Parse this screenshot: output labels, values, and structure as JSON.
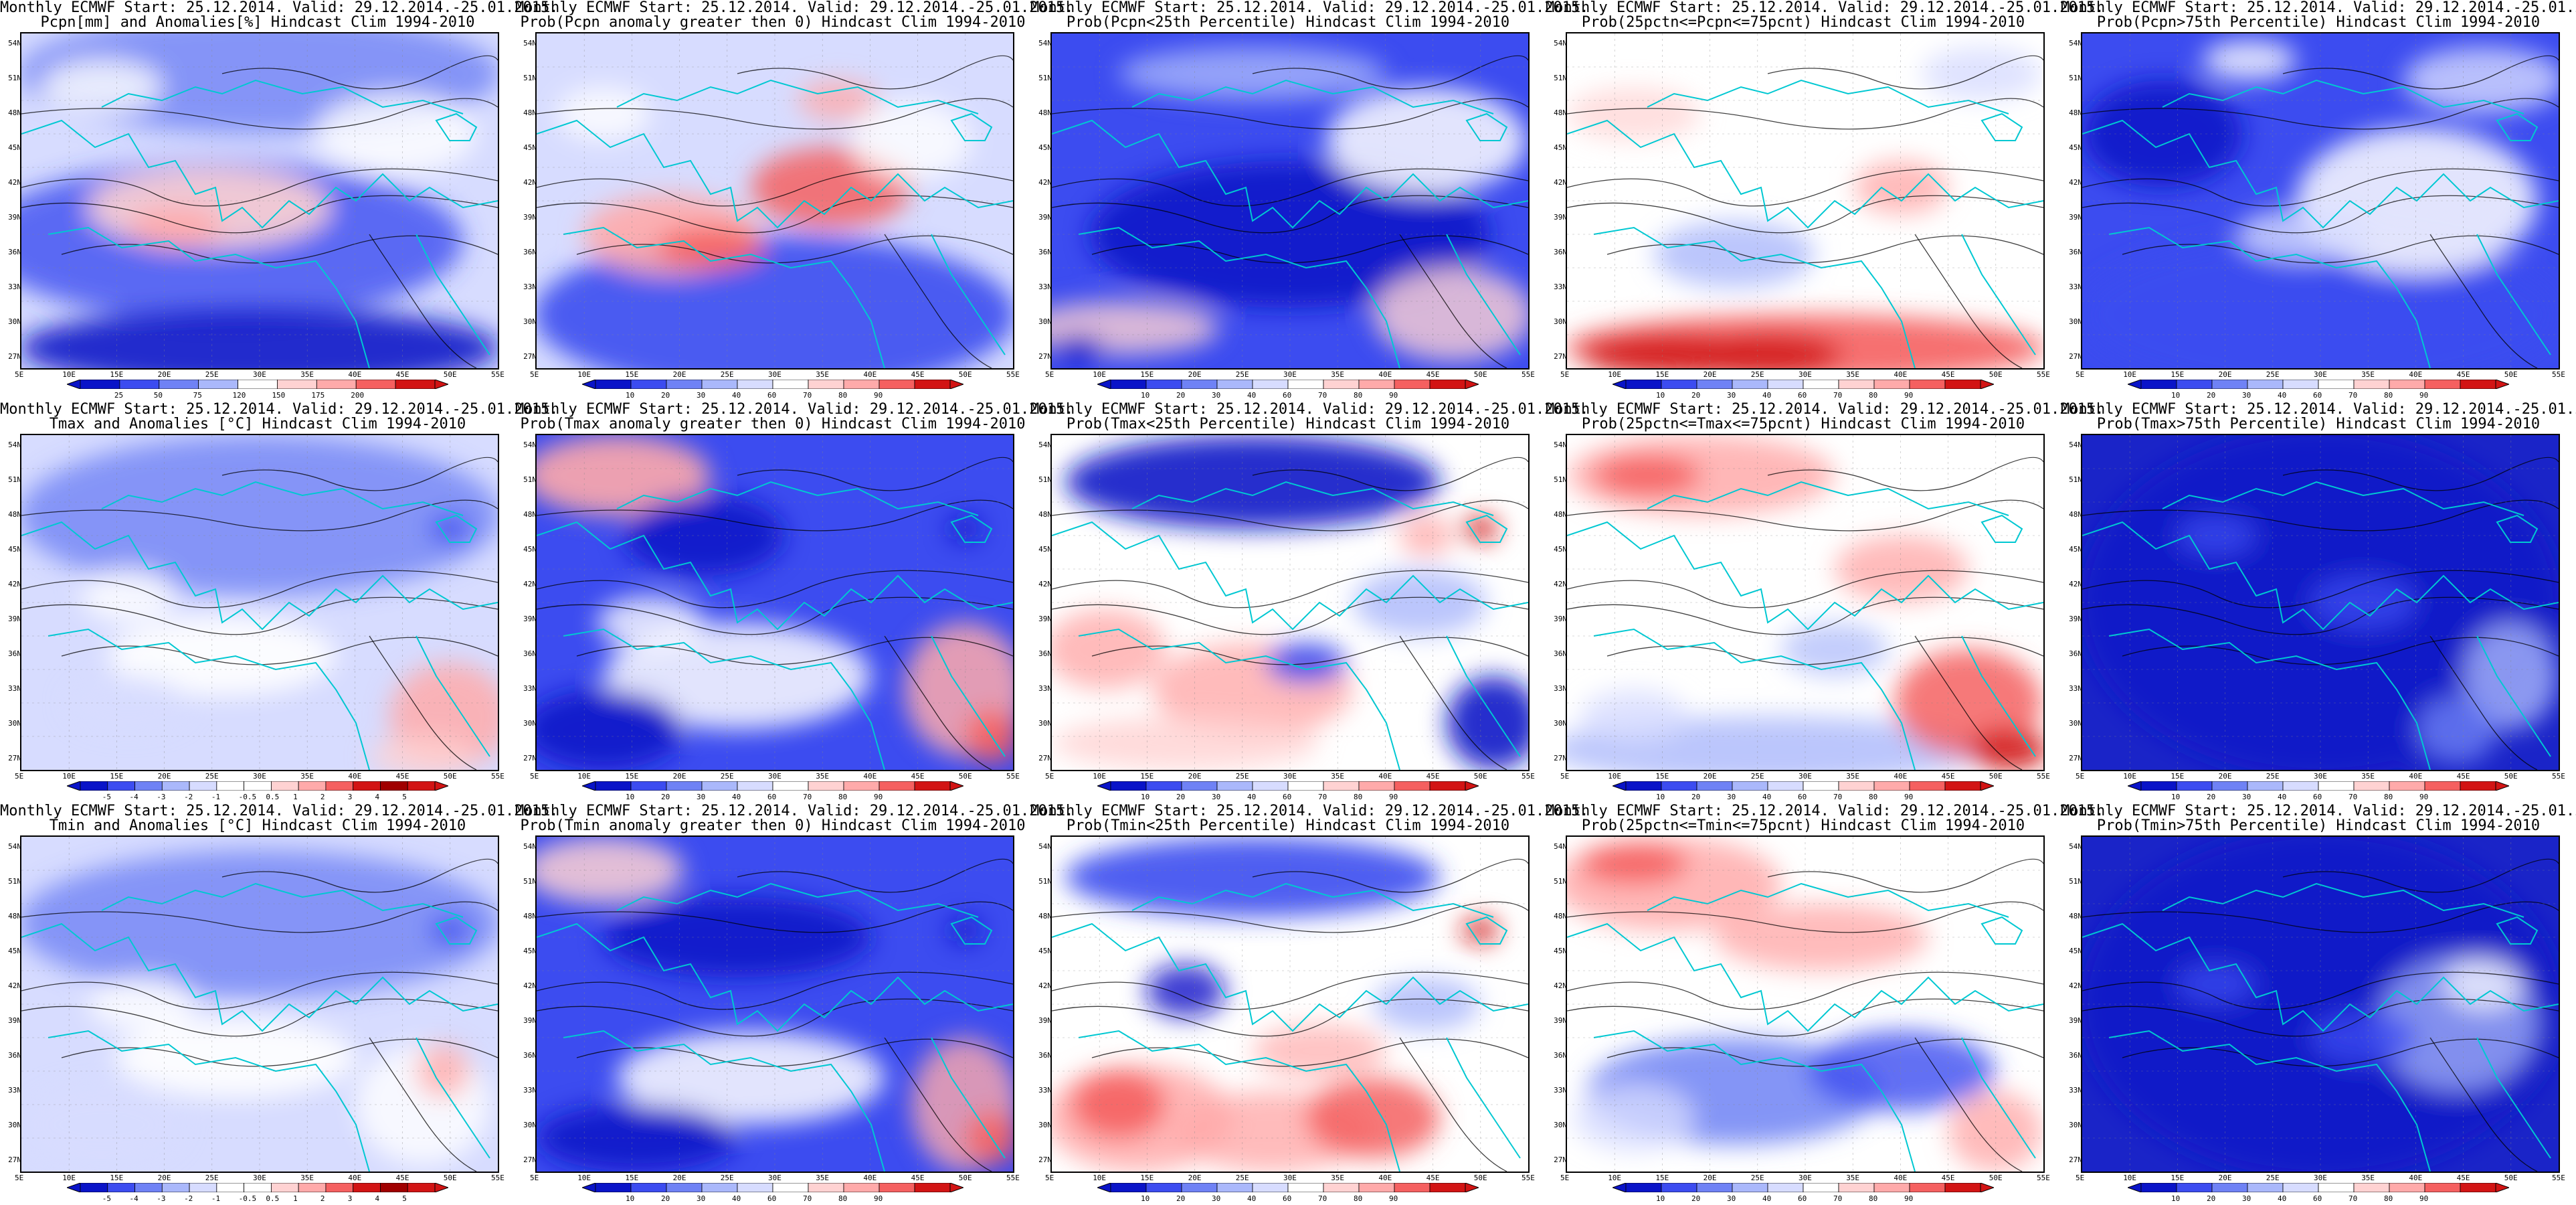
{
  "figure": {
    "title_line1": "Monthly ECMWF Start: 25.12.2014. Valid: 29.12.2014.-25.01.2015.",
    "colors": {
      "deep_blue": "#0a14c8",
      "blue": "#3c4cf0",
      "mid_blue": "#6f82f5",
      "light_blue": "#aab8fb",
      "pale_blue": "#d7dcff",
      "white": "#ffffff",
      "pale_red": "#ffd2d2",
      "light_red": "#ffaaaa",
      "red": "#f56060",
      "deep_red": "#d21414",
      "contour": "#000000",
      "coastline": "#00c8d2"
    },
    "map": {
      "lat_labels": [
        "54N",
        "51N",
        "48N",
        "45N",
        "42N",
        "39N",
        "36N",
        "33N",
        "30N",
        "27N"
      ],
      "lon_labels": [
        "5E",
        "10E",
        "15E",
        "20E",
        "25E",
        "30E",
        "35E",
        "40E",
        "45E",
        "50E",
        "55E"
      ]
    },
    "colorbars": {
      "precip_anom": [
        "25",
        "50",
        "75",
        "120",
        "150",
        "175",
        "200"
      ],
      "probability": [
        "10",
        "20",
        "30",
        "40",
        "60",
        "70",
        "80",
        "90"
      ],
      "temp_anom": [
        "-5",
        "-4",
        "-3",
        "-2",
        "-1",
        "-0.5",
        "0.5",
        "1",
        "2",
        "3",
        "4",
        "5"
      ]
    },
    "panels": [
      {
        "id": "pcpn-anom",
        "subtitle": "Pcpn[mm] and Anomalies[%] Hindcast Clim 1994-2010",
        "scale": "precip_anom",
        "style": "pcpn_anom"
      },
      {
        "id": "pcpn-gt0",
        "subtitle": "Prob(Pcpn anomaly greater then 0) Hindcast Clim 1994-2010",
        "scale": "probability",
        "style": "pcpn_gt0"
      },
      {
        "id": "pcpn-lt25",
        "subtitle": "Prob(Pcpn<25th Percentile) Hindcast Clim 1994-2010",
        "scale": "probability",
        "style": "pcpn_lt25"
      },
      {
        "id": "pcpn-mid",
        "subtitle": "Prob(25pctn<=Pcpn<=75pcnt) Hindcast Clim 1994-2010",
        "scale": "probability",
        "style": "pcpn_mid"
      },
      {
        "id": "pcpn-gt75",
        "subtitle": "Prob(Pcpn>75th Percentile) Hindcast Clim 1994-2010",
        "scale": "probability",
        "style": "pcpn_gt75"
      },
      {
        "id": "tmax-anom",
        "subtitle": "Tmax and Anomalies [°C] Hindcast Clim 1994-2010",
        "scale": "temp_anom",
        "style": "tmax_anom"
      },
      {
        "id": "tmax-gt0",
        "subtitle": "Prob(Tmax anomaly greater then 0) Hindcast Clim 1994-2010",
        "scale": "probability",
        "style": "tmax_gt0"
      },
      {
        "id": "tmax-lt25",
        "subtitle": "Prob(Tmax<25th Percentile) Hindcast Clim 1994-2010",
        "scale": "probability",
        "style": "tmax_lt25"
      },
      {
        "id": "tmax-mid",
        "subtitle": "Prob(25pctn<=Tmax<=75pcnt) Hindcast Clim 1994-2010",
        "scale": "probability",
        "style": "tmax_mid"
      },
      {
        "id": "tmax-gt75",
        "subtitle": "Prob(Tmax>75th Percentile) Hindcast Clim 1994-2010",
        "scale": "probability",
        "style": "tmax_gt75"
      },
      {
        "id": "tmin-anom",
        "subtitle": "Tmin and Anomalies [°C] Hindcast Clim 1994-2010",
        "scale": "temp_anom",
        "style": "tmin_anom"
      },
      {
        "id": "tmin-gt0",
        "subtitle": "Prob(Tmin anomaly greater then 0) Hindcast Clim 1994-2010",
        "scale": "probability",
        "style": "tmin_gt0"
      },
      {
        "id": "tmin-lt25",
        "subtitle": "Prob(Tmin<25th Percentile) Hindcast Clim 1994-2010",
        "scale": "probability",
        "style": "tmin_lt25"
      },
      {
        "id": "tmin-mid",
        "subtitle": "Prob(25pctn<=Tmin<=75pcnt) Hindcast Clim 1994-2010",
        "scale": "probability",
        "style": "tmin_mid"
      },
      {
        "id": "tmin-gt75",
        "subtitle": "Prob(Tmin>75th Percentile) Hindcast Clim 1994-2010",
        "scale": "probability",
        "style": "tmin_gt75"
      }
    ]
  }
}
